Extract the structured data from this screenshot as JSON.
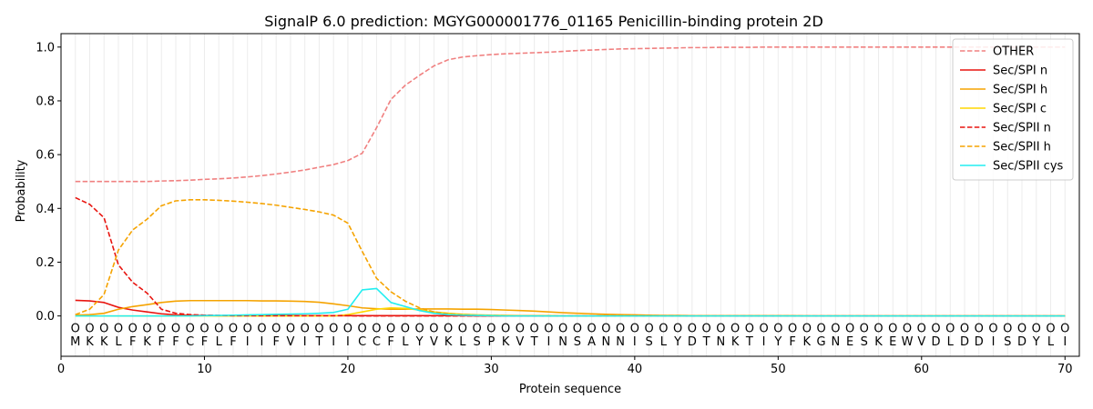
{
  "chart_data": {
    "type": "line",
    "title": "SignalP 6.0 prediction: MGYG000001776_01165 Penicillin-binding protein 2D",
    "xlabel": "Protein sequence",
    "ylabel": "Probability",
    "xlim": [
      0,
      71
    ],
    "ylim": [
      -0.15,
      1.05
    ],
    "x_ticks": [
      0,
      10,
      20,
      30,
      40,
      50,
      60,
      70
    ],
    "y_ticks": [
      0.0,
      0.2,
      0.4,
      0.6,
      0.8,
      1.0
    ],
    "y_tick_labels": [
      "0.0",
      "0.2",
      "0.4",
      "0.6",
      "0.8",
      "1.0"
    ],
    "grid": "vertical lines at every residue position",
    "legend_position": "top-right",
    "sequence": [
      "M",
      "K",
      "K",
      "L",
      "F",
      "K",
      "F",
      "F",
      "C",
      "F",
      "L",
      "F",
      "I",
      "I",
      "F",
      "V",
      "I",
      "T",
      "I",
      "I",
      "C",
      "C",
      "F",
      "L",
      "Y",
      "V",
      "K",
      "L",
      "S",
      "P",
      "K",
      "V",
      "T",
      "I",
      "N",
      "S",
      "A",
      "N",
      "N",
      "I",
      "S",
      "L",
      "Y",
      "D",
      "T",
      "N",
      "K",
      "T",
      "I",
      "Y",
      "F",
      "K",
      "G",
      "N",
      "E",
      "S",
      "K",
      "E",
      "W",
      "V",
      "D",
      "L",
      "D",
      "D",
      "I",
      "S",
      "D",
      "Y",
      "L",
      "I"
    ],
    "position_markers": "O",
    "series": [
      {
        "name": "OTHER",
        "color": "#f08080",
        "dash": "dashed",
        "values": [
          0.5,
          0.5,
          0.5,
          0.5,
          0.5,
          0.5,
          0.502,
          0.503,
          0.505,
          0.508,
          0.51,
          0.513,
          0.517,
          0.522,
          0.528,
          0.535,
          0.543,
          0.553,
          0.563,
          0.578,
          0.605,
          0.7,
          0.805,
          0.858,
          0.895,
          0.93,
          0.953,
          0.963,
          0.968,
          0.972,
          0.975,
          0.977,
          0.979,
          0.981,
          0.984,
          0.987,
          0.989,
          0.991,
          0.993,
          0.994,
          0.995,
          0.996,
          0.997,
          0.998,
          0.998,
          0.999,
          0.999,
          0.999,
          1,
          1,
          1,
          1,
          1,
          1,
          1,
          1,
          1,
          1,
          1,
          1,
          1,
          1,
          1,
          1,
          1,
          1,
          1,
          1,
          1,
          1
        ]
      },
      {
        "name": "Sec/SPI n",
        "color": "#e8140f",
        "dash": "solid",
        "values": [
          0.058,
          0.056,
          0.05,
          0.032,
          0.022,
          0.015,
          0.008,
          0.004,
          0.002,
          0.002,
          0.001,
          0.001,
          0.001,
          0.001,
          0.001,
          0.001,
          0.001,
          0.001,
          0.001,
          0.001,
          0.001,
          0.001,
          0.001,
          0.001,
          0.001,
          0.001,
          0.001,
          0.001,
          0,
          0,
          0,
          0,
          0,
          0,
          0,
          0,
          0,
          0,
          0,
          0,
          0,
          0,
          0,
          0,
          0,
          0,
          0,
          0,
          0,
          0,
          0,
          0,
          0,
          0,
          0,
          0,
          0,
          0,
          0,
          0,
          0,
          0,
          0,
          0,
          0,
          0,
          0,
          0,
          0,
          0
        ]
      },
      {
        "name": "Sec/SPI h",
        "color": "#f5a300",
        "dash": "solid",
        "values": [
          0.003,
          0.005,
          0.01,
          0.025,
          0.035,
          0.042,
          0.05,
          0.055,
          0.057,
          0.057,
          0.057,
          0.057,
          0.057,
          0.056,
          0.056,
          0.055,
          0.054,
          0.051,
          0.045,
          0.038,
          0.03,
          0.027,
          0.025,
          0.025,
          0.026,
          0.026,
          0.026,
          0.025,
          0.025,
          0.024,
          0.022,
          0.02,
          0.018,
          0.015,
          0.012,
          0.01,
          0.008,
          0.006,
          0.005,
          0.004,
          0.003,
          0.002,
          0.002,
          0.001,
          0.001,
          0.001,
          0.001,
          0.001,
          0.001,
          0.001,
          0.001,
          0,
          0,
          0,
          0,
          0,
          0,
          0,
          0,
          0,
          0,
          0,
          0,
          0,
          0,
          0,
          0,
          0,
          0,
          0
        ]
      },
      {
        "name": "Sec/SPI c",
        "color": "#ffd700",
        "dash": "solid",
        "values": [
          0,
          0,
          0,
          0,
          0,
          0,
          0,
          0,
          0,
          0,
          0,
          0,
          0,
          0,
          0,
          0,
          0,
          0,
          0,
          0.005,
          0.015,
          0.025,
          0.03,
          0.028,
          0.022,
          0.015,
          0.01,
          0.006,
          0.004,
          0.003,
          0.002,
          0.001,
          0.001,
          0.001,
          0,
          0,
          0,
          0,
          0,
          0,
          0,
          0,
          0,
          0,
          0,
          0,
          0,
          0,
          0,
          0,
          0,
          0,
          0,
          0,
          0,
          0,
          0,
          0,
          0,
          0,
          0,
          0,
          0,
          0,
          0,
          0,
          0,
          0,
          0,
          0
        ]
      },
      {
        "name": "Sec/SPII n",
        "color": "#e8140f",
        "dash": "dashed",
        "values": [
          0.44,
          0.415,
          0.365,
          0.19,
          0.125,
          0.085,
          0.025,
          0.01,
          0.005,
          0.003,
          0.002,
          0.001,
          0.001,
          0.001,
          0.001,
          0.001,
          0.001,
          0.001,
          0.001,
          0.001,
          0,
          0,
          0,
          0,
          0,
          0,
          0,
          0,
          0,
          0,
          0,
          0,
          0,
          0,
          0,
          0,
          0,
          0,
          0,
          0,
          0,
          0,
          0,
          0,
          0,
          0,
          0,
          0,
          0,
          0,
          0,
          0,
          0,
          0,
          0,
          0,
          0,
          0,
          0,
          0,
          0,
          0,
          0,
          0,
          0,
          0,
          0,
          0,
          0,
          0
        ]
      },
      {
        "name": "Sec/SPII h",
        "color": "#f5a300",
        "dash": "dashed",
        "values": [
          0.005,
          0.025,
          0.08,
          0.245,
          0.32,
          0.36,
          0.41,
          0.428,
          0.432,
          0.432,
          0.43,
          0.427,
          0.423,
          0.418,
          0.412,
          0.404,
          0.396,
          0.387,
          0.375,
          0.345,
          0.24,
          0.14,
          0.09,
          0.055,
          0.03,
          0.015,
          0.008,
          0.005,
          0.003,
          0.002,
          0.001,
          0.001,
          0.001,
          0,
          0,
          0,
          0,
          0,
          0,
          0,
          0,
          0,
          0,
          0,
          0,
          0,
          0,
          0,
          0,
          0,
          0,
          0,
          0,
          0,
          0,
          0,
          0,
          0,
          0,
          0,
          0,
          0,
          0,
          0,
          0,
          0,
          0,
          0,
          0,
          0
        ]
      },
      {
        "name": "Sec/SPII cys",
        "color": "#22eef0",
        "dash": "solid",
        "values": [
          0,
          0,
          0,
          0,
          0,
          0,
          0,
          0,
          0,
          0.001,
          0.002,
          0.003,
          0.004,
          0.005,
          0.006,
          0.007,
          0.008,
          0.01,
          0.013,
          0.025,
          0.097,
          0.102,
          0.05,
          0.035,
          0.02,
          0.01,
          0.005,
          0.003,
          0.002,
          0.001,
          0,
          0,
          0,
          0,
          0,
          0,
          0,
          0,
          0,
          0,
          0,
          0,
          0,
          0,
          0,
          0,
          0,
          0,
          0,
          0,
          0,
          0,
          0,
          0,
          0,
          0,
          0,
          0,
          0,
          0,
          0,
          0,
          0,
          0,
          0,
          0,
          0,
          0,
          0,
          0
        ]
      }
    ]
  }
}
